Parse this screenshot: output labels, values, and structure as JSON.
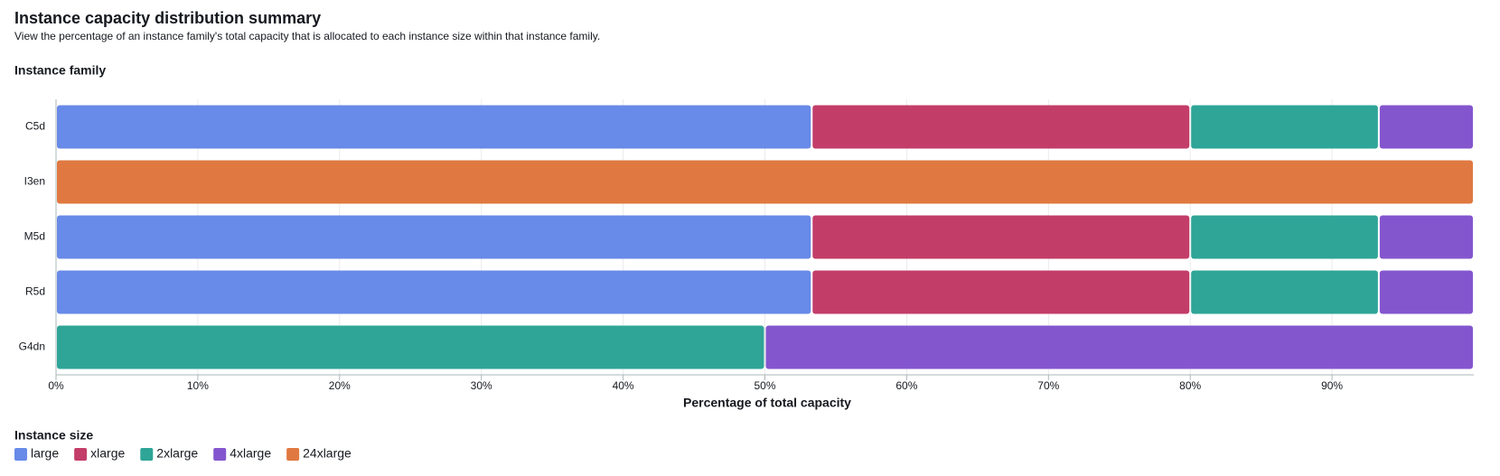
{
  "chart_data": {
    "type": "bar",
    "orientation": "horizontal",
    "stacked": true,
    "title": "Instance capacity distribution summary",
    "subtitle": "View the percentage of an instance family's total capacity that is allocated to each instance size within that instance family.",
    "y_axis_title": "Instance family",
    "x_axis_title": "Percentage of total capacity",
    "legend_title": "Instance size",
    "categories": [
      "C5d",
      "I3en",
      "M5d",
      "R5d",
      "G4dn"
    ],
    "series": [
      {
        "name": "large",
        "color": "#688ae8",
        "values": [
          53.3,
          null,
          53.3,
          53.3,
          null
        ]
      },
      {
        "name": "xlarge",
        "color": "#c33d69",
        "values": [
          26.7,
          null,
          26.7,
          26.7,
          null
        ]
      },
      {
        "name": "2xlarge",
        "color": "#2ea597",
        "values": [
          13.3,
          null,
          13.3,
          13.3,
          50
        ]
      },
      {
        "name": "4xlarge",
        "color": "#8456ce",
        "values": [
          6.7,
          null,
          6.7,
          6.7,
          50
        ]
      },
      {
        "name": "24xlarge",
        "color": "#e07941",
        "values": [
          null,
          100,
          null,
          null,
          null
        ]
      }
    ],
    "xlim": [
      0,
      100
    ],
    "xticks": [
      {
        "value": 0,
        "label": "0%"
      },
      {
        "value": 10,
        "label": "10%"
      },
      {
        "value": 20,
        "label": "20%"
      },
      {
        "value": 30,
        "label": "30%"
      },
      {
        "value": 40,
        "label": "40%"
      },
      {
        "value": 50,
        "label": "50%"
      },
      {
        "value": 60,
        "label": "60%"
      },
      {
        "value": 70,
        "label": "70%"
      },
      {
        "value": 80,
        "label": "80%"
      },
      {
        "value": 90,
        "label": "90%"
      }
    ],
    "grid": true
  }
}
